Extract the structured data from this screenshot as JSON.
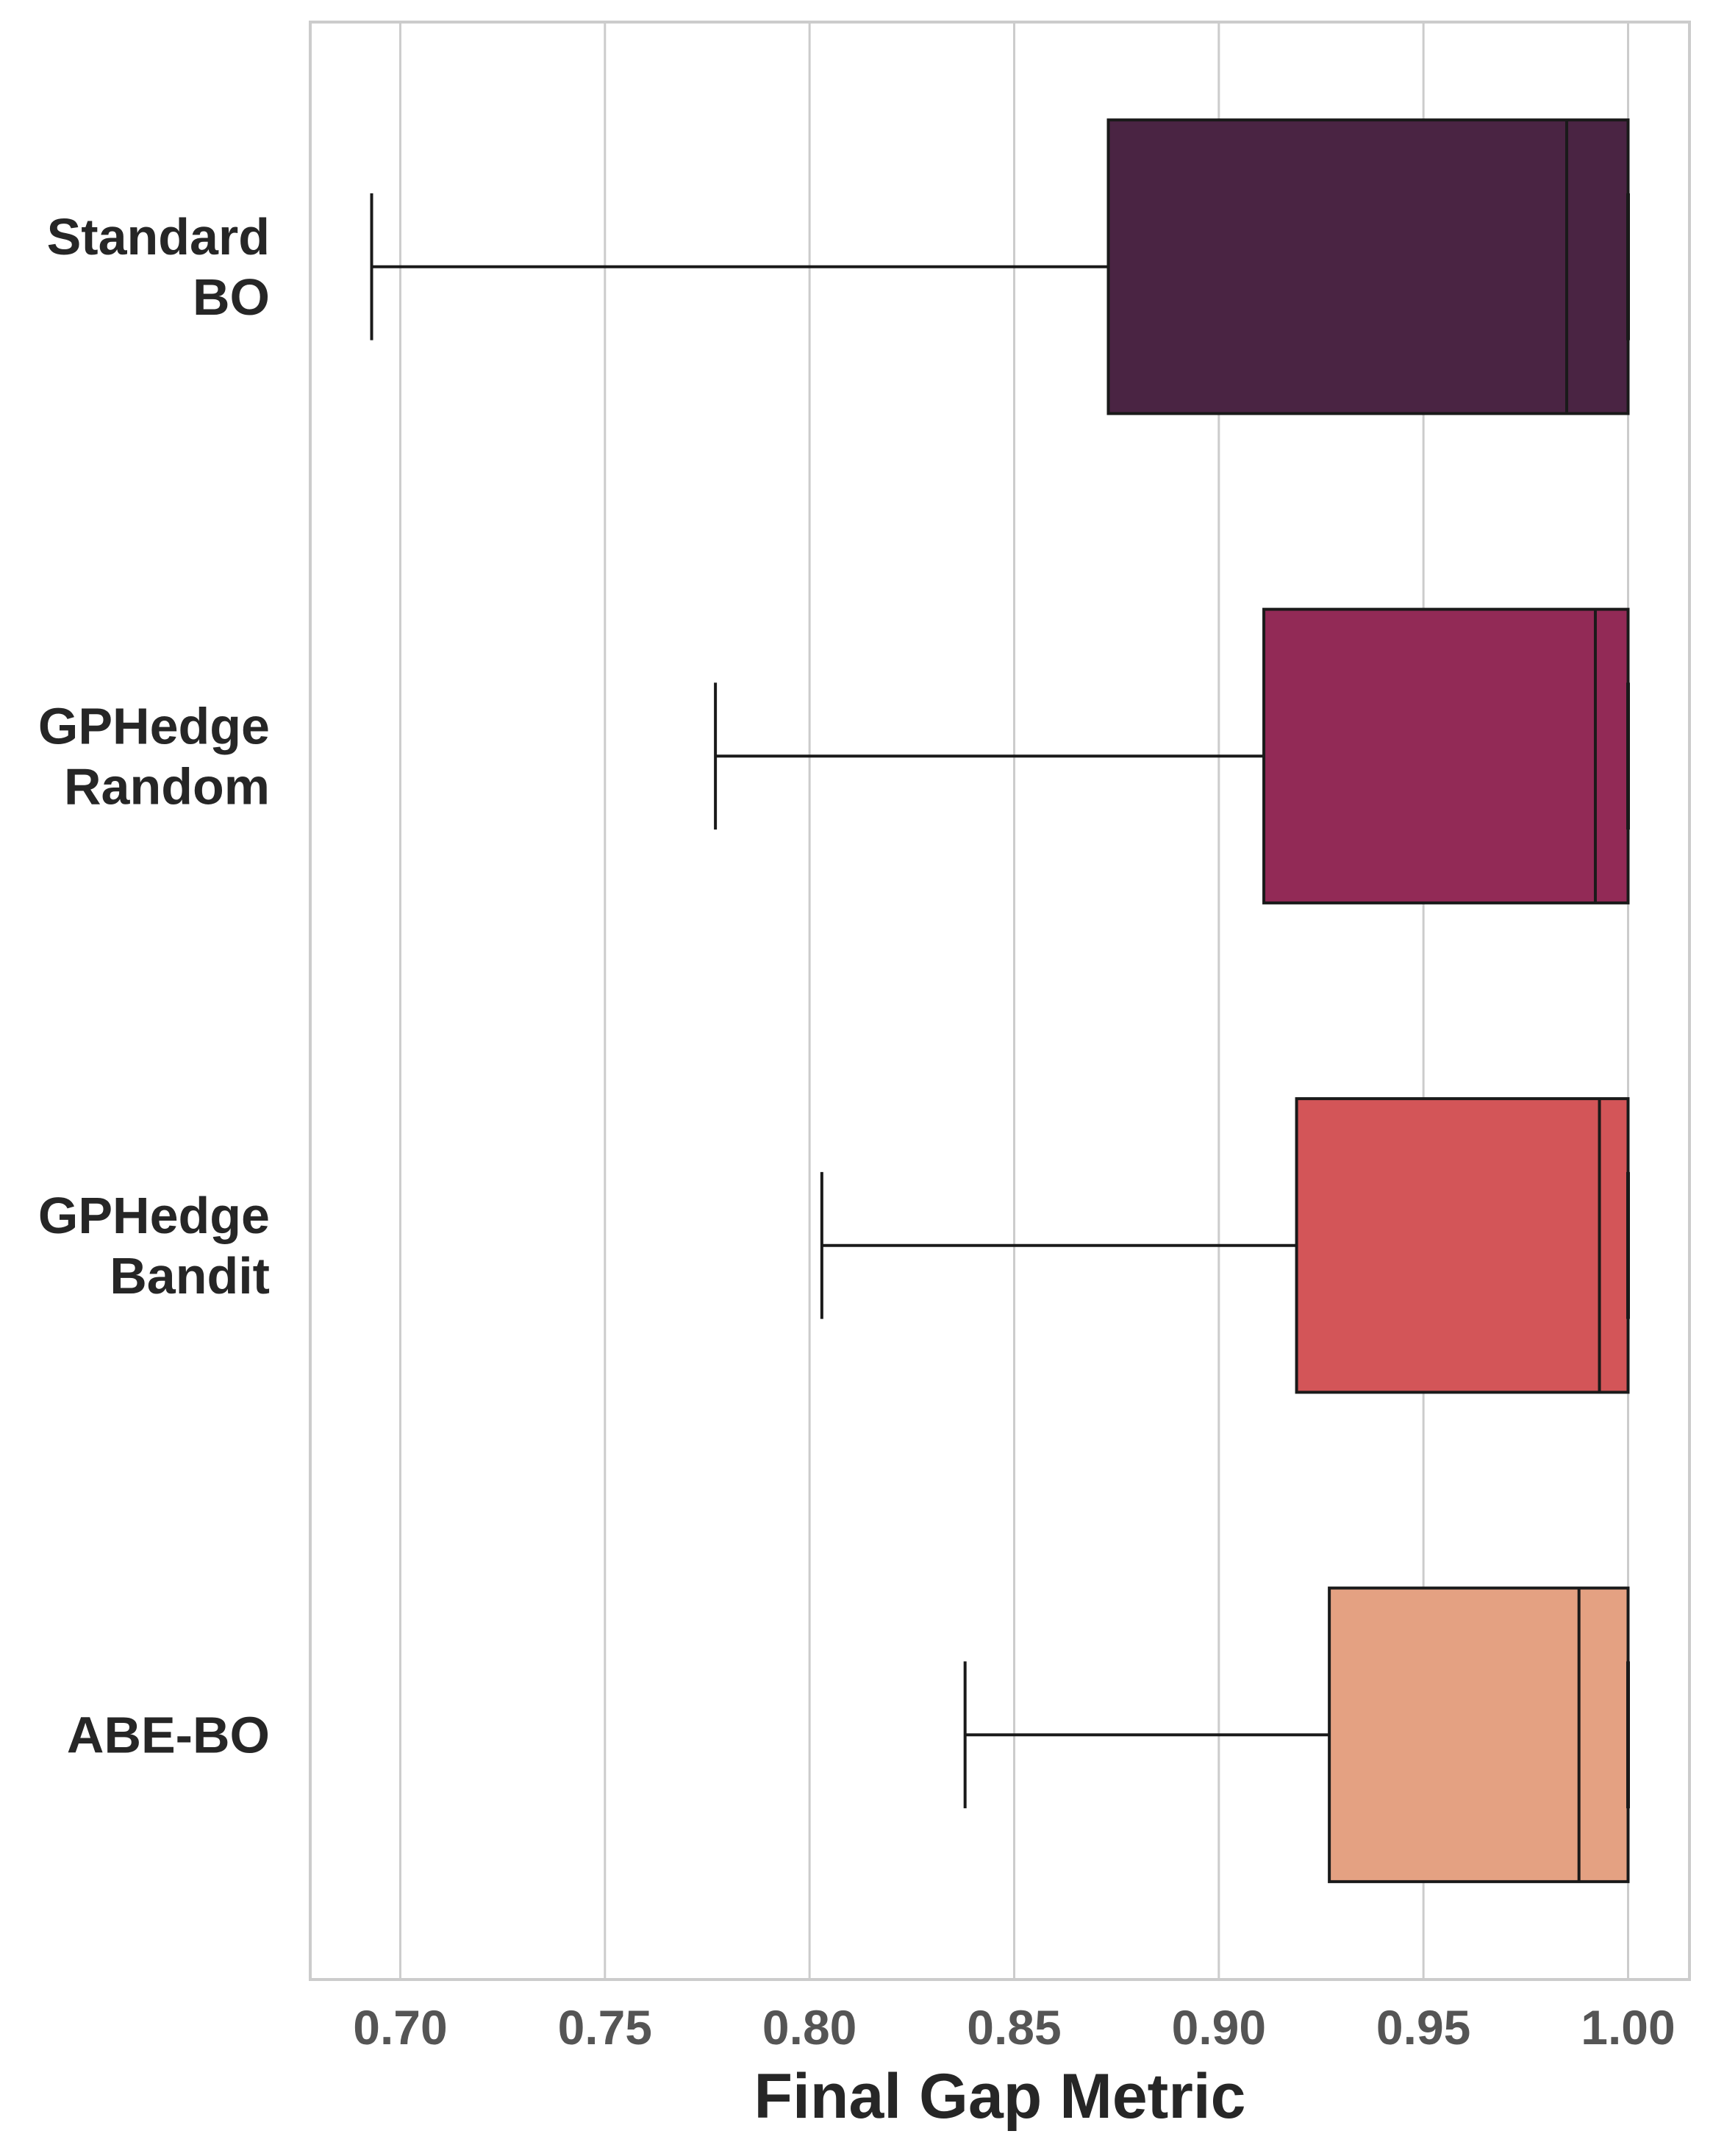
{
  "chart_data": {
    "type": "box",
    "orientation": "horizontal",
    "title": "",
    "xlabel": "Final Gap Metric",
    "ylabel": "",
    "xlim": [
      0.678,
      1.015
    ],
    "xticks": [
      0.7,
      0.75,
      0.8,
      0.85,
      0.9,
      0.95,
      1.0
    ],
    "xtick_labels": [
      "0.70",
      "0.75",
      "0.80",
      "0.85",
      "0.90",
      "0.95",
      "1.00"
    ],
    "grid": "vertical",
    "categories": [
      {
        "lines": [
          "Standard",
          "BO"
        ]
      },
      {
        "lines": [
          "GPHedge",
          "Random"
        ]
      },
      {
        "lines": [
          "GPHedge",
          "Bandit"
        ]
      },
      {
        "lines": [
          "ABE-BO"
        ]
      }
    ],
    "boxes": [
      {
        "whisker_low": 0.693,
        "q1": 0.873,
        "median": 0.985,
        "q3": 1.0,
        "whisker_high": 1.0,
        "color": "#4a2443"
      },
      {
        "whisker_low": 0.777,
        "q1": 0.911,
        "median": 0.992,
        "q3": 1.0,
        "whisker_high": 1.0,
        "color": "#922a56"
      },
      {
        "whisker_low": 0.803,
        "q1": 0.919,
        "median": 0.993,
        "q3": 1.0,
        "whisker_high": 1.0,
        "color": "#d35558"
      },
      {
        "whisker_low": 0.838,
        "q1": 0.927,
        "median": 0.988,
        "q3": 1.0,
        "whisker_high": 1.0,
        "color": "#e4a182"
      }
    ]
  }
}
